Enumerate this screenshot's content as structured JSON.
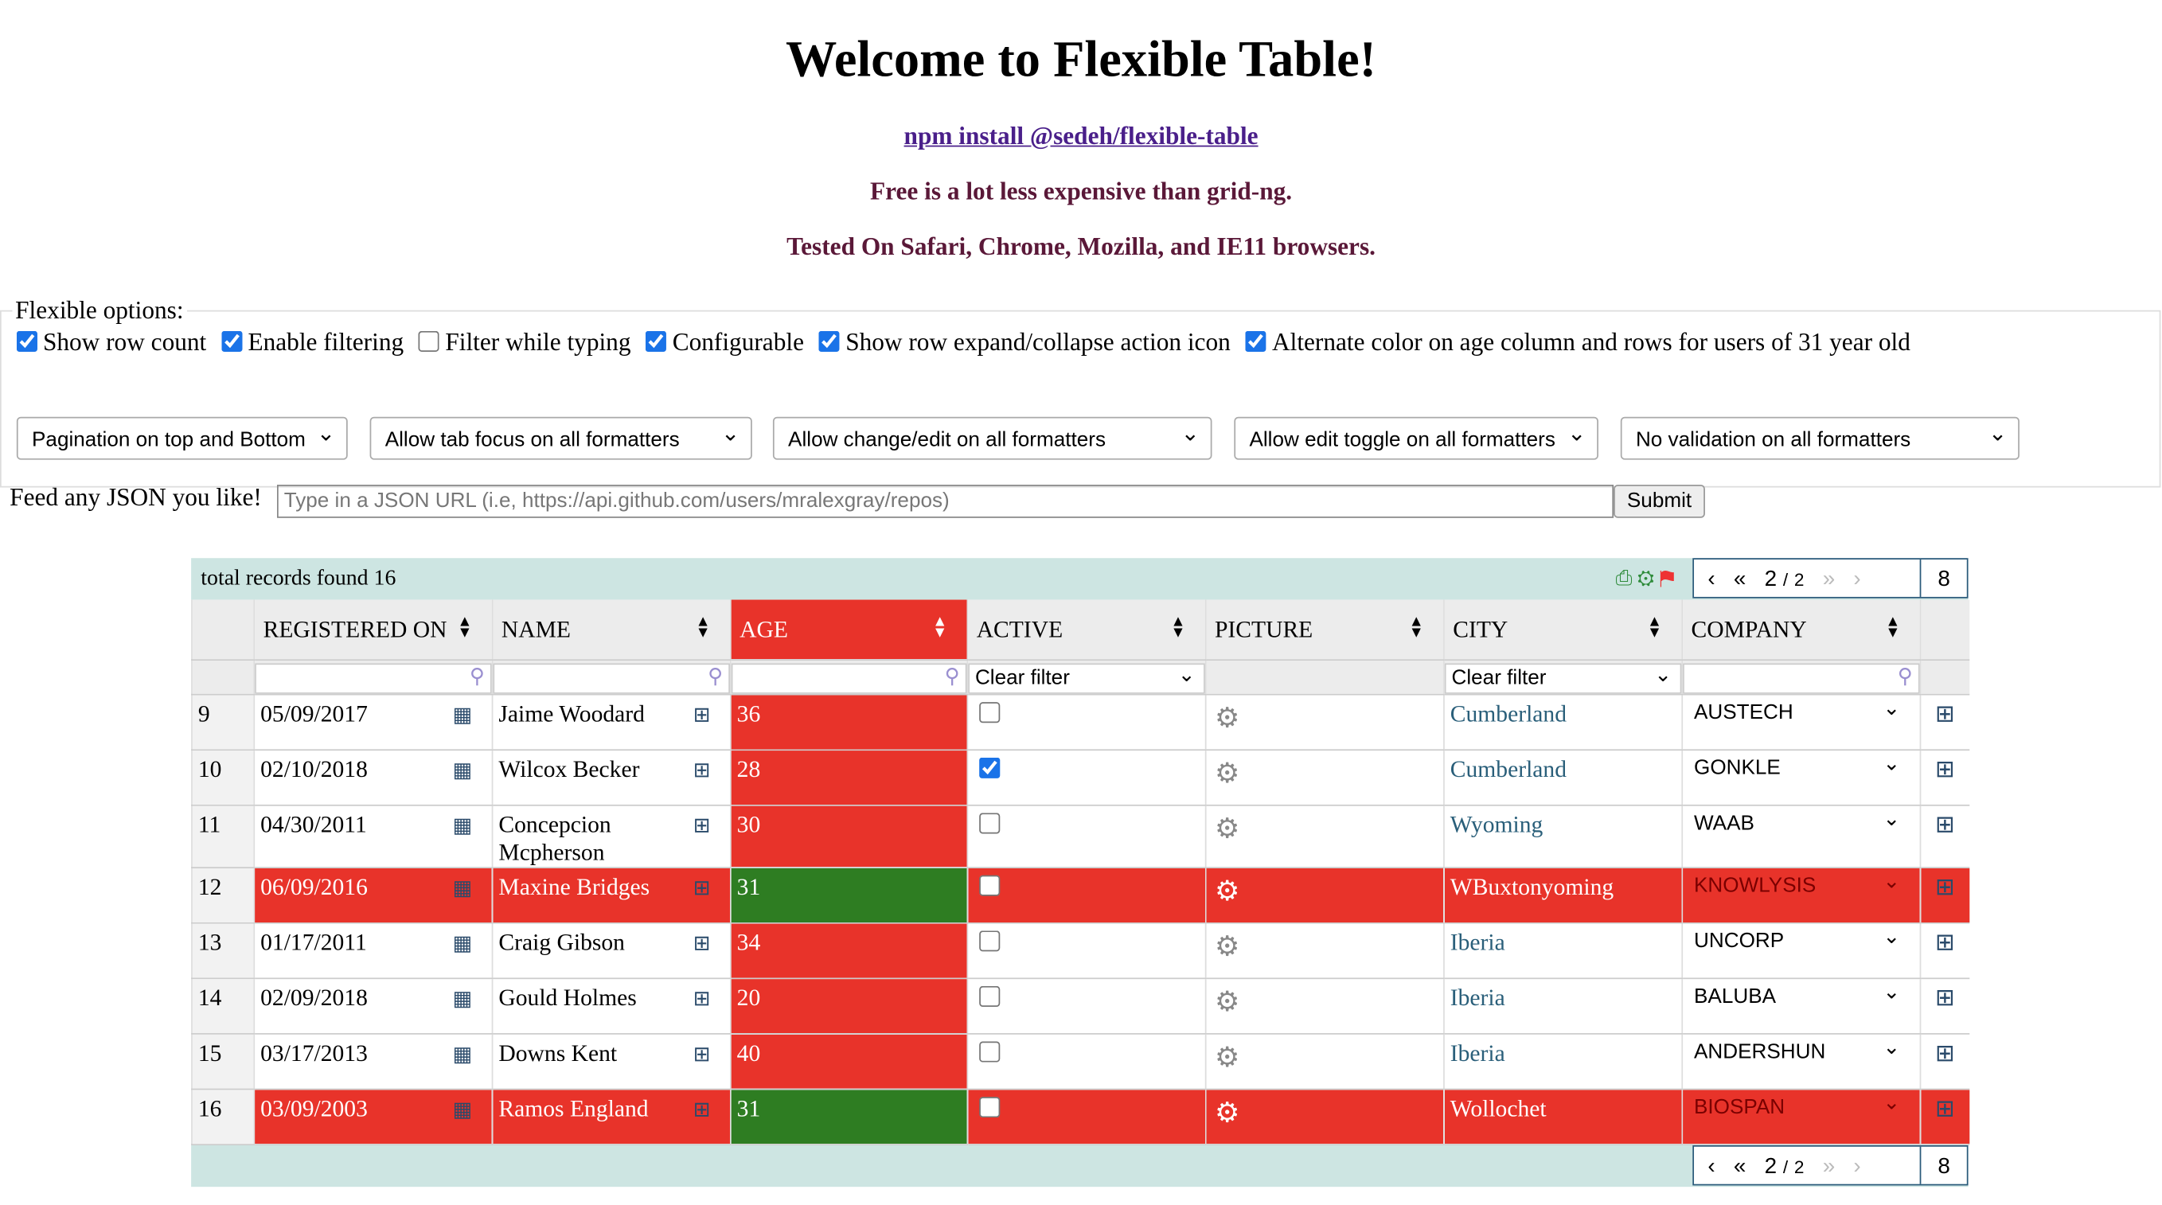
{
  "header": {
    "title": "Welcome to Flexible Table!",
    "npm": "npm install @sedeh/flexible-table",
    "tagline": "Free is a lot less expensive than grid-ng.",
    "tested": "Tested On Safari, Chrome, Mozilla, and IE11 browsers."
  },
  "options": {
    "legend": "Flexible options:",
    "checkboxes": [
      {
        "label": "Show row count",
        "checked": true
      },
      {
        "label": "Enable filtering",
        "checked": true
      },
      {
        "label": "Filter while typing",
        "checked": false
      },
      {
        "label": "Configurable",
        "checked": true
      },
      {
        "label": "Show row expand/collapse action icon",
        "checked": true
      },
      {
        "label": "Alternate color on age column and rows for users of 31 year old",
        "checked": true
      }
    ],
    "selects": [
      "Pagination on top and Bottom",
      "Allow tab focus on all formatters",
      "Allow change/edit on all formatters",
      "Allow edit toggle on all formatters",
      "No validation on all formatters"
    ],
    "feed_label": "Feed any JSON you like!",
    "feed_placeholder": "Type in a JSON URL (i.e, https://api.github.com/users/mralexgray/repos)",
    "submit": "Submit"
  },
  "table": {
    "summary": "total records found 16",
    "pager": {
      "current": "2",
      "separator": "/",
      "total": "2",
      "size": "8"
    },
    "columns": [
      "REGISTERED ON",
      "NAME",
      "AGE",
      "ACTIVE",
      "PICTURE",
      "CITY",
      "COMPANY"
    ],
    "filters": {
      "active": "Clear filter",
      "city": "Clear filter"
    },
    "rows": [
      [
        "9",
        "05/09/2017",
        "Jaime Woodard",
        "36",
        false,
        "Cumberland",
        "AUSTECH"
      ],
      [
        "10",
        "02/10/2018",
        "Wilcox Becker",
        "28",
        true,
        "Cumberland",
        "GONKLE"
      ],
      [
        "11",
        "04/30/2011",
        "Concepcion Mcpherson",
        "30",
        false,
        "Wyoming",
        "WAAB"
      ],
      [
        "12",
        "06/09/2016",
        "Maxine Bridges",
        "31",
        false,
        "WBuxtonyoming",
        "KNOWLYSIS"
      ],
      [
        "13",
        "01/17/2011",
        "Craig Gibson",
        "34",
        false,
        "Iberia",
        "UNCORP"
      ],
      [
        "14",
        "02/09/2018",
        "Gould Holmes",
        "20",
        false,
        "Iberia",
        "BALUBA"
      ],
      [
        "15",
        "03/17/2013",
        "Downs Kent",
        "40",
        false,
        "Iberia",
        "ANDERSHUN"
      ],
      [
        "16",
        "03/09/2003",
        "Ramos England",
        "31",
        false,
        "Wollochet",
        "BIOSPAN"
      ]
    ]
  }
}
